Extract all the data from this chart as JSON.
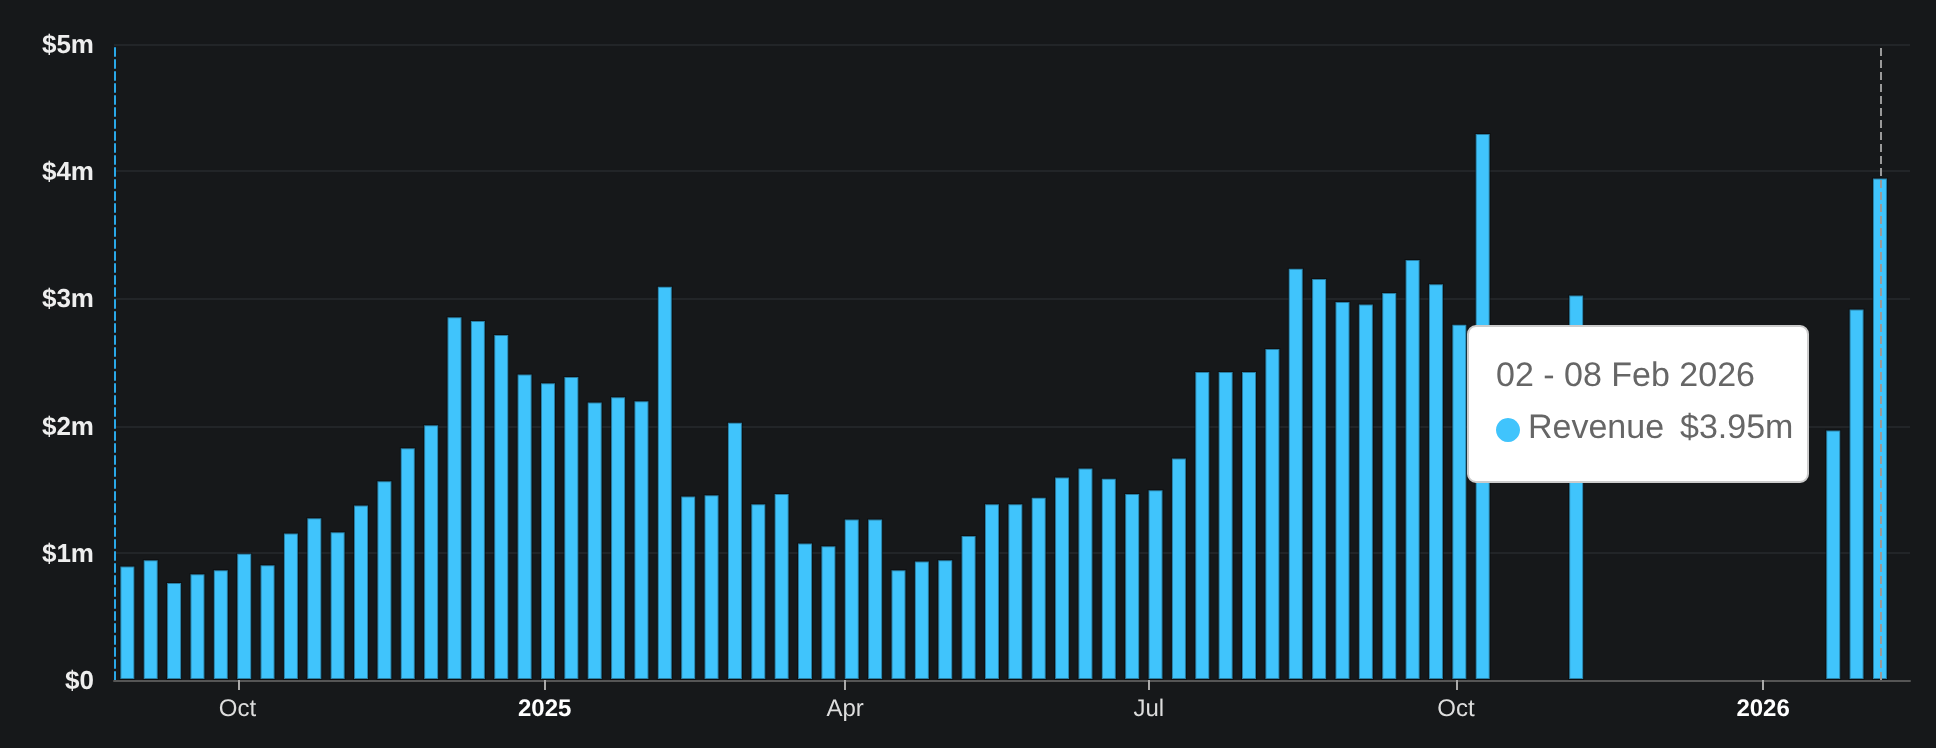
{
  "chart_data": {
    "type": "bar",
    "x": [
      "2024-08-29",
      "2024-09-05",
      "2024-09-12",
      "2024-09-19",
      "2024-09-26",
      "2024-10-03",
      "2024-10-10",
      "2024-10-17",
      "2024-10-24",
      "2024-10-31",
      "2024-11-07",
      "2024-11-14",
      "2024-11-21",
      "2024-11-28",
      "2024-12-05",
      "2024-12-12",
      "2024-12-19",
      "2024-12-26",
      "2025-01-02",
      "2025-01-09",
      "2025-01-16",
      "2025-01-23",
      "2025-01-30",
      "2025-02-06",
      "2025-02-13",
      "2025-02-20",
      "2025-02-27",
      "2025-03-06",
      "2025-03-13",
      "2025-03-20",
      "2025-03-27",
      "2025-04-03",
      "2025-04-10",
      "2025-04-17",
      "2025-04-24",
      "2025-05-01",
      "2025-05-08",
      "2025-05-15",
      "2025-05-22",
      "2025-05-29",
      "2025-06-05",
      "2025-06-12",
      "2025-06-19",
      "2025-06-26",
      "2025-07-03",
      "2025-07-10",
      "2025-07-17",
      "2025-07-24",
      "2025-07-31",
      "2025-08-07",
      "2025-08-14",
      "2025-08-21",
      "2025-08-28",
      "2025-09-04",
      "2025-09-11",
      "2025-09-18",
      "2025-09-25",
      "2025-10-02",
      "2025-10-09",
      "2025-10-16",
      "2025-10-23",
      "2025-10-30",
      "2025-11-06",
      "2025-11-13",
      "2025-11-20",
      "2025-11-27",
      "2025-12-04",
      "2025-12-11",
      "2025-12-18",
      "2025-12-25",
      "2026-01-01",
      "2026-01-08",
      "2026-01-15",
      "2026-01-22",
      "2026-01-29",
      "2026-02-05"
    ],
    "series": [
      {
        "name": "Revenue",
        "color": "#40c4fc",
        "values": [
          0.9,
          0.95,
          0.77,
          0.84,
          0.87,
          1.0,
          0.91,
          1.16,
          1.28,
          1.17,
          1.38,
          1.57,
          1.83,
          2.01,
          2.86,
          2.83,
          2.72,
          2.41,
          2.34,
          2.39,
          2.19,
          2.23,
          2.2,
          3.1,
          1.45,
          1.46,
          2.03,
          1.39,
          1.47,
          1.08,
          1.06,
          1.27,
          1.27,
          0.87,
          0.94,
          0.95,
          1.14,
          1.39,
          1.39,
          1.44,
          1.6,
          1.67,
          1.59,
          1.47,
          1.5,
          1.75,
          2.43,
          2.43,
          2.43,
          2.61,
          3.24,
          3.16,
          2.98,
          2.96,
          3.05,
          3.31,
          3.12,
          2.8,
          4.3,
          null,
          null,
          null,
          3.03,
          null,
          null,
          null,
          null,
          null,
          null,
          null,
          null,
          null,
          null,
          1.97,
          2.92,
          3.95
        ]
      }
    ],
    "xlim": [
      "2024-08-25",
      "2026-02-14"
    ],
    "xticks": [
      {
        "value": "2024-10-01",
        "label": "Oct"
      },
      {
        "value": "2025-01-01",
        "label": "2025"
      },
      {
        "value": "2025-04-01",
        "label": "Apr"
      },
      {
        "value": "2025-07-01",
        "label": "Jul"
      },
      {
        "value": "2025-10-01",
        "label": "Oct"
      },
      {
        "value": "2026-01-01",
        "label": "2026"
      }
    ],
    "ylim": [
      0,
      5
    ],
    "yticks": [
      {
        "value": 0,
        "label": "$0"
      },
      {
        "value": 1,
        "label": "$1m"
      },
      {
        "value": 2,
        "label": "$2m"
      },
      {
        "value": 3,
        "label": "$3m"
      },
      {
        "value": 4,
        "label": "$4m"
      },
      {
        "value": 5,
        "label": "$5m"
      }
    ],
    "grid": "y",
    "ref_lines": [
      {
        "axis": "x",
        "value": "2026-02-05",
        "color": "#9a9a9a",
        "line_style": "dashed"
      }
    ],
    "annotations": [
      "02 - 08 Feb 2026",
      "$3.95m"
    ]
  }
}
